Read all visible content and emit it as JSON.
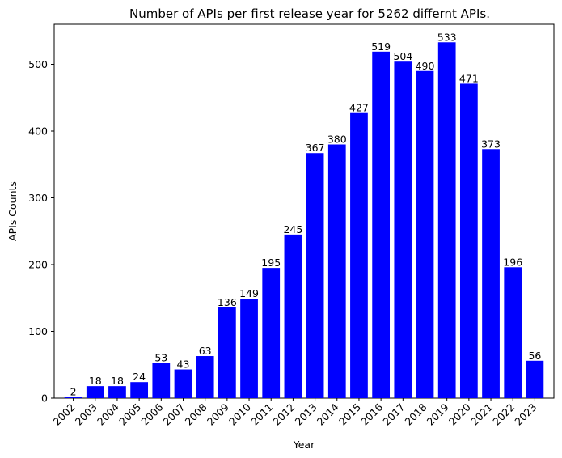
{
  "chart_data": {
    "type": "bar",
    "title": "Number of APIs per first release year for 5262 differnt APIs.",
    "xlabel": "Year",
    "ylabel": "APIs Counts",
    "categories": [
      "2002",
      "2003",
      "2004",
      "2005",
      "2006",
      "2007",
      "2008",
      "2009",
      "2010",
      "2011",
      "2012",
      "2013",
      "2014",
      "2015",
      "2016",
      "2017",
      "2018",
      "2019",
      "2020",
      "2021",
      "2022",
      "2023"
    ],
    "values": [
      2,
      18,
      18,
      24,
      53,
      43,
      63,
      136,
      149,
      195,
      245,
      367,
      380,
      427,
      519,
      504,
      490,
      533,
      471,
      373,
      196,
      56
    ],
    "ylim": [
      0,
      560
    ],
    "yticks": [
      0,
      100,
      200,
      300,
      400,
      500
    ],
    "bar_color": "#0000ff",
    "grid": false,
    "legend": "none",
    "data_labels": true,
    "xtick_rotation": 45
  }
}
